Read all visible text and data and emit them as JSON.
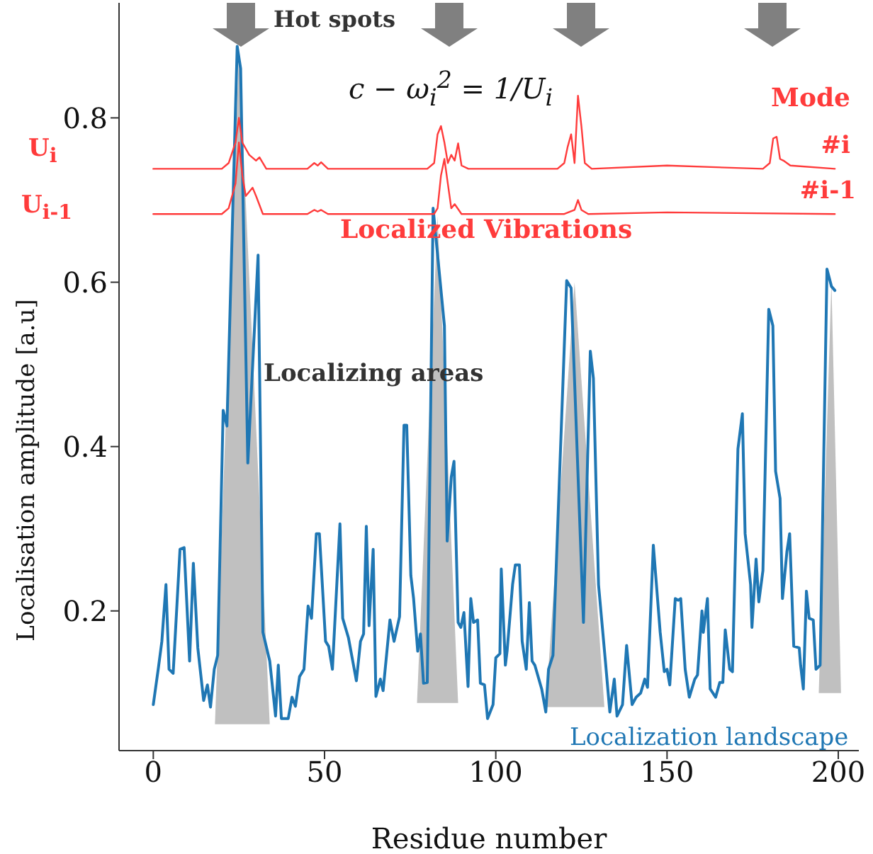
{
  "chart_data": {
    "type": "line",
    "xlabel": "Residue number",
    "ylabel": "Localisation amplitude [a.u]",
    "xlim": [
      -10,
      206
    ],
    "ylim": [
      0.03,
      0.94
    ],
    "xticks": [
      0,
      50,
      100,
      150,
      200
    ],
    "yticks": [
      0.2,
      0.4,
      0.6,
      0.8
    ],
    "grid": false,
    "legend": false,
    "marker": "none",
    "annotations": [
      "Hot spots",
      "c − ω$_{i}$$^{2}$ = 1/U$_{i}$",
      "Mode",
      "U$_{i}$",
      "U$_{i-1}$",
      "Localized Vibrations",
      "Localizing areas"
    ],
    "series": [
      {
        "type": "area",
        "color": "#c0c0c0",
        "x": [
          18,
          25,
          34
        ],
        "values": [
          0.062,
          0.88,
          0.062
        ]
      },
      {
        "type": "area",
        "color": "#c0c0c0",
        "x": [
          77,
          83,
          89
        ],
        "values": [
          0.088,
          0.68,
          0.088
        ]
      },
      {
        "type": "area",
        "color": "#c0c0c0",
        "x": [
          114.6,
          123,
          131.7
        ],
        "values": [
          0.083,
          0.6,
          0.083
        ]
      },
      {
        "type": "area",
        "color": "#c0c0c0",
        "x": [
          194.3,
          198,
          200.8
        ],
        "values": [
          0.1,
          0.6,
          0.1
        ]
      },
      {
        "name": "Localization landscape",
        "color": "#1f77b4",
        "x": [
          0,
          1.5,
          2.5,
          3.7,
          4.6,
          5.8,
          7.8,
          9,
          10.6,
          11.7,
          13,
          14.7,
          15.8,
          16.7,
          17.8,
          18.8,
          20.4,
          21.5,
          24.5,
          25.5,
          27.6,
          30.6,
          32,
          34,
          35.7,
          36.5,
          37.4,
          39.4,
          40.5,
          41.5,
          42.7,
          44,
          45.2,
          46.2,
          47.6,
          48.5,
          50.3,
          51.2,
          52.3,
          54.5,
          55.3,
          57,
          59.3,
          60.5,
          61.4,
          62.2,
          63,
          64.2,
          65,
          66.3,
          67.1,
          69.1,
          70.3,
          71.9,
          73.2,
          74,
          75.2,
          76,
          77.2,
          78,
          78.9,
          80,
          81.7,
          85,
          85.8,
          87,
          87.8,
          89,
          89.8,
          90.7,
          91.9,
          92.7,
          93.5,
          94.7,
          95.5,
          96.7,
          97.6,
          99.2,
          100,
          101.2,
          101.6,
          102.8,
          103.3,
          104.9,
          105.7,
          106.9,
          107.7,
          108.9,
          109.8,
          110.6,
          111.4,
          113.4,
          114.6,
          115.4,
          116.7,
          120.7,
          122,
          125.6,
          127.6,
          128.5,
          130,
          132,
          133.3,
          134.6,
          135.4,
          137,
          138.2,
          139.8,
          141,
          142.3,
          143.5,
          144.3,
          146,
          148,
          149.2,
          150,
          150.8,
          152.4,
          153.3,
          154,
          155.3,
          156.5,
          158.1,
          158.9,
          160.2,
          160.6,
          161.8,
          162.6,
          164.2,
          165.4,
          166.3,
          167,
          168.3,
          169.1,
          170.7,
          172,
          172.8,
          174.4,
          174.8,
          176,
          176.8,
          178,
          179.7,
          180.9,
          181.7,
          183,
          183.7,
          185,
          185.8,
          187,
          188.6,
          189,
          189.8,
          190.7,
          191.5,
          192.7,
          193.5,
          194.7,
          196.7,
          198,
          199
        ],
        "values": [
          0.086,
          0.131,
          0.163,
          0.232,
          0.129,
          0.124,
          0.275,
          0.277,
          0.139,
          0.258,
          0.155,
          0.091,
          0.11,
          0.083,
          0.129,
          0.146,
          0.444,
          0.425,
          0.887,
          0.86,
          0.38,
          0.633,
          0.174,
          0.139,
          0.072,
          0.134,
          0.069,
          0.069,
          0.095,
          0.084,
          0.12,
          0.129,
          0.206,
          0.191,
          0.294,
          0.294,
          0.163,
          0.157,
          0.129,
          0.306,
          0.191,
          0.167,
          0.115,
          0.163,
          0.172,
          0.303,
          0.182,
          0.275,
          0.096,
          0.117,
          0.103,
          0.189,
          0.163,
          0.193,
          0.426,
          0.426,
          0.243,
          0.215,
          0.151,
          0.172,
          0.112,
          0.113,
          0.69,
          0.547,
          0.285,
          0.363,
          0.382,
          0.186,
          0.18,
          0.198,
          0.108,
          0.215,
          0.186,
          0.189,
          0.112,
          0.11,
          0.069,
          0.086,
          0.143,
          0.148,
          0.251,
          0.134,
          0.151,
          0.232,
          0.256,
          0.256,
          0.163,
          0.129,
          0.21,
          0.139,
          0.134,
          0.105,
          0.077,
          0.129,
          0.146,
          0.602,
          0.593,
          0.186,
          0.516,
          0.483,
          0.232,
          0.139,
          0.077,
          0.117,
          0.072,
          0.086,
          0.158,
          0.086,
          0.095,
          0.1,
          0.117,
          0.107,
          0.28,
          0.174,
          0.126,
          0.129,
          0.11,
          0.215,
          0.213,
          0.215,
          0.129,
          0.095,
          0.117,
          0.122,
          0.2,
          0.174,
          0.215,
          0.105,
          0.095,
          0.113,
          0.113,
          0.177,
          0.129,
          0.126,
          0.397,
          0.44,
          0.294,
          0.232,
          0.18,
          0.263,
          0.211,
          0.249,
          0.567,
          0.547,
          0.37,
          0.337,
          0.215,
          0.272,
          0.294,
          0.157,
          0.155,
          0.134,
          0.105,
          0.224,
          0.191,
          0.189,
          0.129,
          0.134,
          0.616,
          0.595,
          0.59
        ]
      },
      {
        "name": "#i",
        "color": "#ff3b3b",
        "x": [
          0,
          20,
          22,
          24,
          25,
          26,
          28,
          30,
          31,
          33,
          45,
          47,
          48,
          49,
          51,
          80,
          82,
          83,
          84,
          85,
          86,
          87,
          88,
          89,
          90,
          92,
          118,
          120,
          121,
          122,
          123,
          124,
          125,
          126,
          128,
          150,
          178,
          180,
          181,
          182,
          183,
          184,
          186,
          199
        ],
        "values": [
          0.738,
          0.738,
          0.745,
          0.77,
          0.8,
          0.77,
          0.755,
          0.748,
          0.752,
          0.738,
          0.738,
          0.745,
          0.742,
          0.746,
          0.738,
          0.738,
          0.745,
          0.78,
          0.79,
          0.77,
          0.745,
          0.755,
          0.748,
          0.769,
          0.742,
          0.738,
          0.738,
          0.745,
          0.765,
          0.78,
          0.745,
          0.827,
          0.79,
          0.745,
          0.738,
          0.742,
          0.738,
          0.745,
          0.775,
          0.777,
          0.75,
          0.748,
          0.742,
          0.738
        ]
      },
      {
        "name": "#i-1",
        "color": "#ff3b3b",
        "x": [
          0,
          20,
          22,
          24,
          25,
          26,
          27,
          29,
          30,
          32,
          45,
          47,
          48,
          49,
          51,
          82,
          83,
          84,
          85,
          86,
          87,
          88,
          90,
          120,
          123,
          124,
          125,
          127,
          150,
          199
        ],
        "values": [
          0.683,
          0.683,
          0.69,
          0.72,
          0.77,
          0.73,
          0.705,
          0.715,
          0.705,
          0.683,
          0.683,
          0.688,
          0.686,
          0.688,
          0.683,
          0.683,
          0.69,
          0.73,
          0.75,
          0.72,
          0.69,
          0.695,
          0.683,
          0.683,
          0.688,
          0.7,
          0.688,
          0.683,
          0.685,
          0.683
        ]
      }
    ]
  }
}
